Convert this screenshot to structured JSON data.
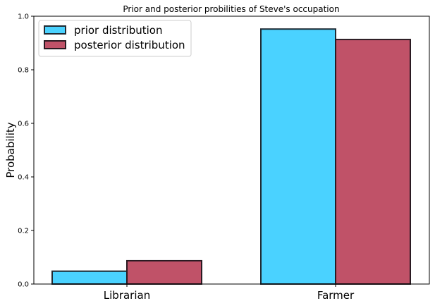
{
  "chart_data": {
    "type": "bar",
    "title": "Prior and posterior probilities of Steve's occupation",
    "xlabel": "",
    "ylabel": "Probability",
    "categories": [
      "Librarian",
      "Farmer"
    ],
    "series": [
      {
        "name": "prior distribution",
        "values": [
          0.048,
          0.952
        ],
        "color": "#4ad2ff",
        "edge": "#1f2a33"
      },
      {
        "name": "posterior distribution",
        "values": [
          0.087,
          0.913
        ],
        "color": "#c05268",
        "edge": "#2a1a22"
      }
    ],
    "ylim": [
      0,
      1.0
    ],
    "yticks": [
      "0.0",
      "0.2",
      "0.4",
      "0.6",
      "0.8",
      "1.0"
    ],
    "grid": false,
    "legend_position": "top-left"
  }
}
